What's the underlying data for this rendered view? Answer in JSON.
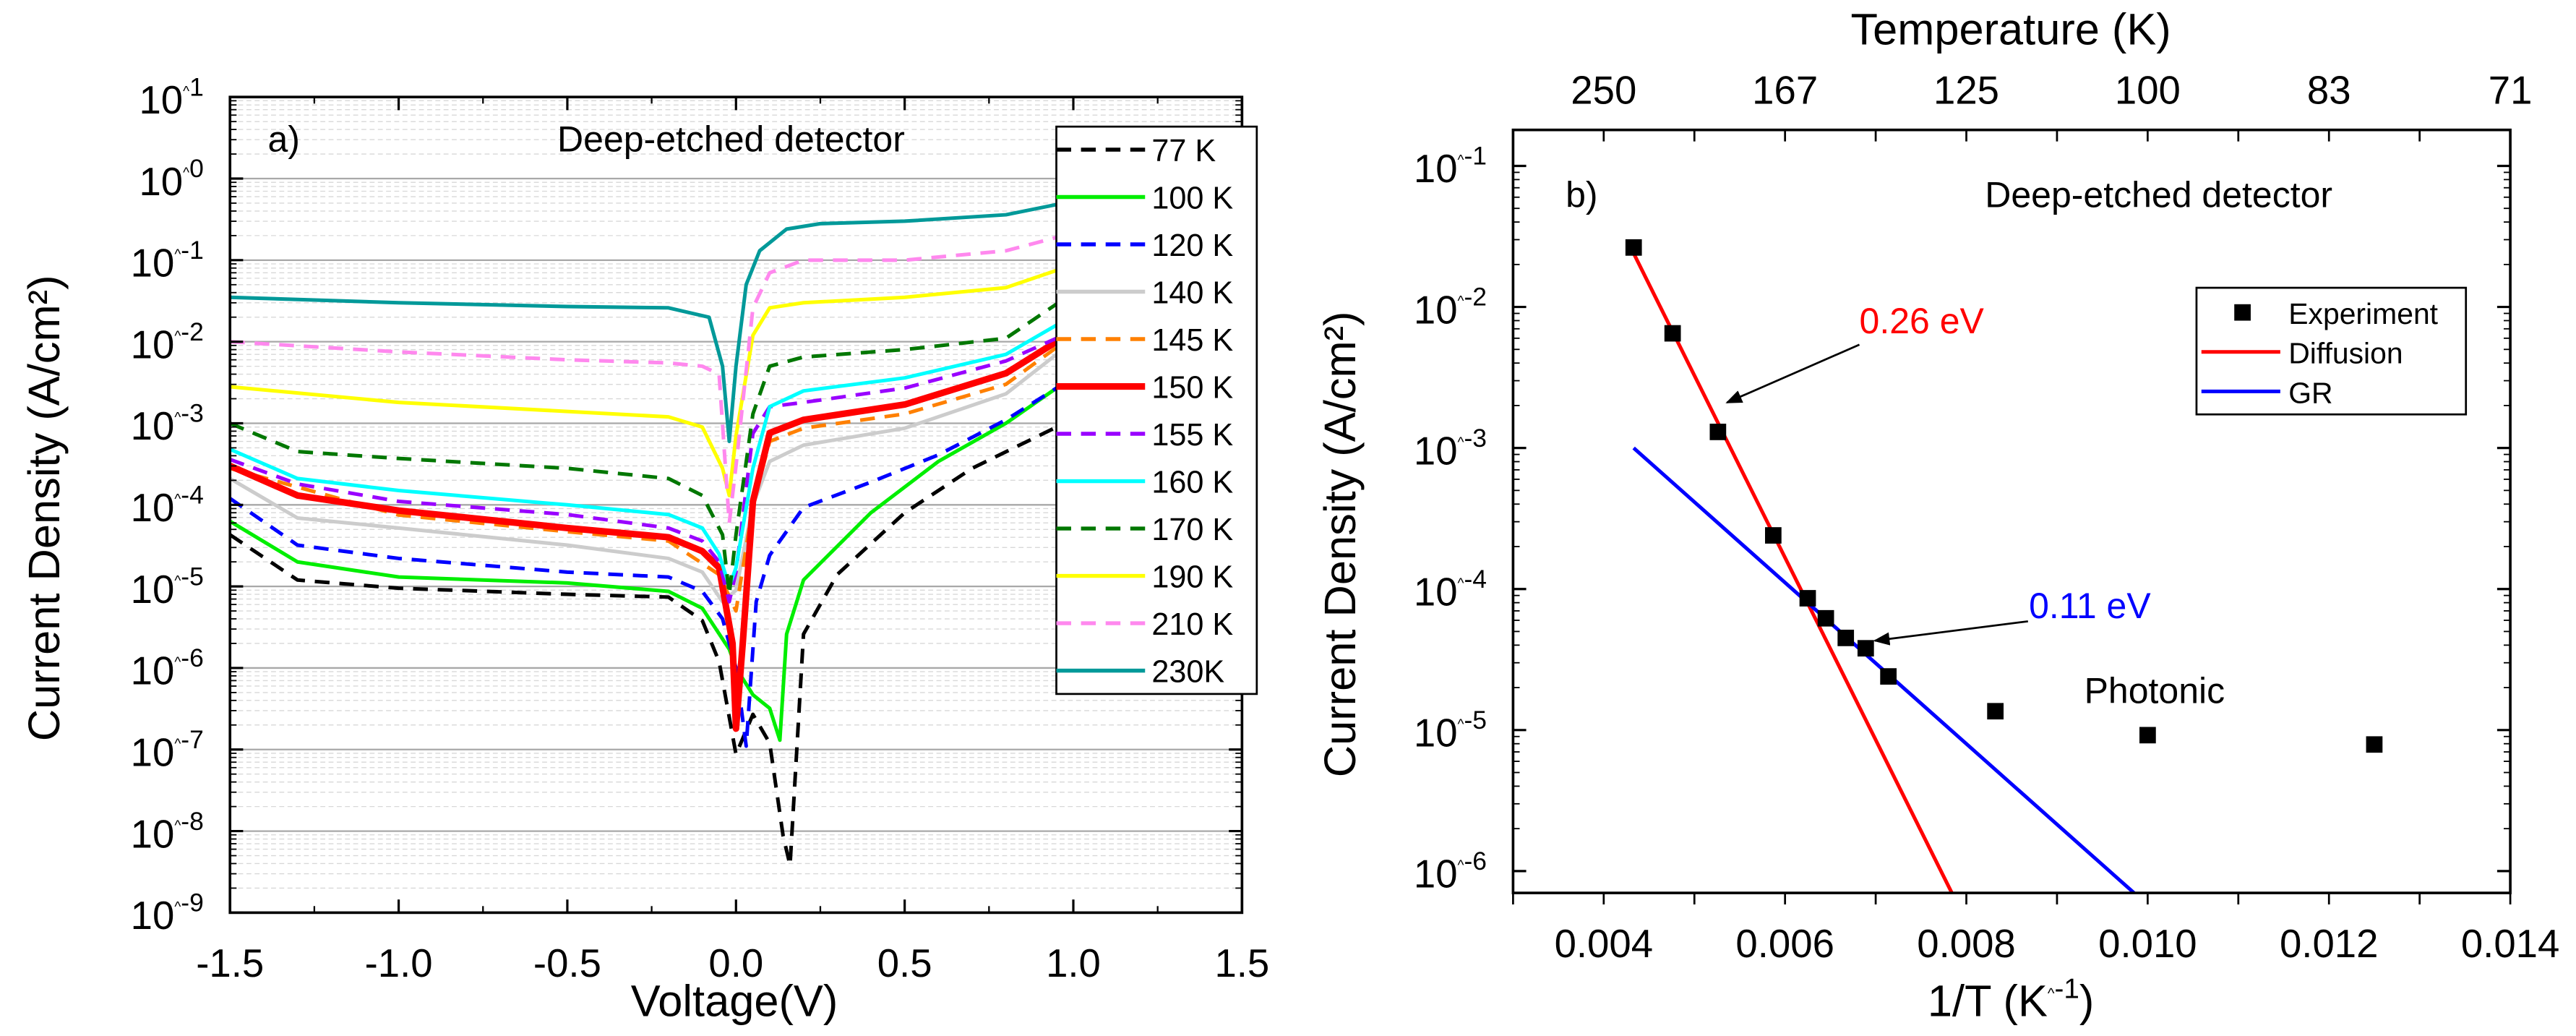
{
  "chart_data": [
    {
      "type": "line",
      "panel_label": "a)",
      "title": "Deep-etched detector",
      "xlabel": "Voltage(V)",
      "ylabel": "Current Density (A/cm²)",
      "xlim": [
        -1.5,
        1.5
      ],
      "ylim": [
        1e-09,
        10
      ],
      "yscale": "log",
      "grid": true,
      "legend_position": "right",
      "xticks": [
        -1.5,
        -1.0,
        -0.5,
        0.0,
        0.5,
        1.0,
        1.5
      ],
      "xtick_labels": [
        "-1.5",
        "-1.0",
        "-0.5",
        "0.0",
        "0.5",
        "1.0",
        "1.5"
      ],
      "ytick_exponents": [
        1,
        0,
        -1,
        -2,
        -3,
        -4,
        -5,
        -6,
        -7,
        -8,
        -9
      ],
      "ytick_labels": [
        "10^1",
        "10^0",
        "10^-1",
        "10^-2",
        "10^-3",
        "10^-4",
        "10^-5",
        "10^-6",
        "10^-7",
        "10^-8",
        "10^-9"
      ],
      "series": [
        {
          "name": "77 K",
          "color": "#000000",
          "dashed": true,
          "points": [
            [
              -1.5,
              4.3e-05
            ],
            [
              -1.3,
              1.2e-05
            ],
            [
              -1.0,
              9.5e-06
            ],
            [
              -0.5,
              8e-06
            ],
            [
              -0.2,
              7.4e-06
            ],
            [
              -0.1,
              3.8e-06
            ],
            [
              -0.05,
              1.2e-06
            ],
            [
              -0.01,
              1.5e-07
            ],
            [
              0.0,
              8.7e-08
            ],
            [
              0.05,
              2.7e-07
            ],
            [
              0.1,
              1.2e-07
            ],
            [
              0.14,
              8.7e-09
            ],
            [
              0.16,
              3.8e-09
            ],
            [
              0.2,
              2.6e-06
            ],
            [
              0.3,
              1.4e-05
            ],
            [
              0.5,
              8e-05
            ],
            [
              0.7,
              0.00028
            ],
            [
              0.95,
              0.0009
            ]
          ]
        },
        {
          "name": "100 K",
          "color": "#00ee00",
          "dashed": false,
          "points": [
            [
              -1.5,
              6.3e-05
            ],
            [
              -1.3,
              2e-05
            ],
            [
              -1.0,
              1.3e-05
            ],
            [
              -0.5,
              1.1e-05
            ],
            [
              -0.2,
              8.7e-06
            ],
            [
              -0.1,
              5.4e-06
            ],
            [
              -0.02,
              1.7e-06
            ],
            [
              0.0,
              1e-06
            ],
            [
              0.05,
              4.7e-07
            ],
            [
              0.1,
              3.2e-07
            ],
            [
              0.13,
              1.3e-07
            ],
            [
              0.15,
              2.6e-06
            ],
            [
              0.2,
              1.2e-05
            ],
            [
              0.4,
              8e-05
            ],
            [
              0.6,
              0.00034
            ],
            [
              0.8,
              0.001
            ],
            [
              0.95,
              0.0027
            ]
          ]
        },
        {
          "name": "120 K",
          "color": "#0000ff",
          "dashed": true,
          "points": [
            [
              -1.5,
              0.00012
            ],
            [
              -1.3,
              3.2e-05
            ],
            [
              -1.0,
              2.2e-05
            ],
            [
              -0.5,
              1.5e-05
            ],
            [
              -0.2,
              1.3e-05
            ],
            [
              -0.1,
              8.7e-06
            ],
            [
              -0.04,
              4e-06
            ],
            [
              0.0,
              1e-06
            ],
            [
              0.03,
              1.1e-07
            ],
            [
              0.06,
              6.5e-06
            ],
            [
              0.1,
              2.4e-05
            ],
            [
              0.2,
              9.3e-05
            ],
            [
              0.4,
              0.00019
            ],
            [
              0.6,
              0.00041
            ],
            [
              0.8,
              0.0011
            ],
            [
              0.95,
              0.0027
            ]
          ]
        },
        {
          "name": "140 K",
          "color": "#cccccc",
          "dashed": false,
          "points": [
            [
              -1.5,
              0.00021
            ],
            [
              -1.3,
              6.9e-05
            ],
            [
              -1.0,
              5.2e-05
            ],
            [
              -0.5,
              3.2e-05
            ],
            [
              -0.2,
              2.2e-05
            ],
            [
              -0.1,
              1.5e-05
            ],
            [
              -0.04,
              6.5e-06
            ],
            [
              0.0,
              9e-06
            ],
            [
              0.05,
              0.0001
            ],
            [
              0.1,
              0.00034
            ],
            [
              0.2,
              0.00054
            ],
            [
              0.5,
              0.00087
            ],
            [
              0.8,
              0.0023
            ],
            [
              0.95,
              0.007
            ]
          ]
        },
        {
          "name": "145 K",
          "color": "#ff8000",
          "dashed": true,
          "points": [
            [
              -1.5,
              0.00028
            ],
            [
              -1.0,
              7.5e-05
            ],
            [
              -0.5,
              4.7e-05
            ],
            [
              -0.2,
              3.6e-05
            ],
            [
              -0.05,
              1.4e-05
            ],
            [
              0.0,
              5e-06
            ],
            [
              0.05,
              0.0001
            ],
            [
              0.1,
              0.0006
            ],
            [
              0.2,
              0.00087
            ],
            [
              0.5,
              0.0013
            ],
            [
              0.8,
              0.003
            ],
            [
              0.95,
              0.0085
            ]
          ]
        },
        {
          "name": "150 K",
          "color": "#ff0000",
          "dashed": false,
          "thick": true,
          "points": [
            [
              -1.5,
              0.0003
            ],
            [
              -1.3,
              0.00013
            ],
            [
              -1.0,
              8.5e-05
            ],
            [
              -0.5,
              5.2e-05
            ],
            [
              -0.2,
              4e-05
            ],
            [
              -0.1,
              2.7e-05
            ],
            [
              -0.05,
              1.7e-05
            ],
            [
              -0.01,
              2e-06
            ],
            [
              0.0,
              1.8e-07
            ],
            [
              0.02,
              2e-06
            ],
            [
              0.05,
              0.00011
            ],
            [
              0.1,
              0.00076
            ],
            [
              0.2,
              0.0011
            ],
            [
              0.5,
              0.0017
            ],
            [
              0.8,
              0.0041
            ],
            [
              0.95,
              0.01
            ]
          ]
        },
        {
          "name": "155 K",
          "color": "#9900ff",
          "dashed": true,
          "points": [
            [
              -1.5,
              0.00036
            ],
            [
              -1.3,
              0.00018
            ],
            [
              -1.0,
              0.00011
            ],
            [
              -0.5,
              7.6e-05
            ],
            [
              -0.2,
              5.2e-05
            ],
            [
              -0.1,
              3.6e-05
            ],
            [
              -0.05,
              2e-05
            ],
            [
              -0.02,
              6.5e-06
            ],
            [
              0.0,
              1.5e-05
            ],
            [
              0.05,
              0.00075
            ],
            [
              0.1,
              0.0016
            ],
            [
              0.2,
              0.0018
            ],
            [
              0.5,
              0.0027
            ],
            [
              0.8,
              0.0058
            ],
            [
              0.95,
              0.011
            ]
          ]
        },
        {
          "name": "160 K",
          "color": "#00ffff",
          "dashed": false,
          "points": [
            [
              -1.5,
              0.00048
            ],
            [
              -1.3,
              0.00021
            ],
            [
              -1.0,
              0.00015
            ],
            [
              -0.5,
              0.0001
            ],
            [
              -0.2,
              7.6e-05
            ],
            [
              -0.1,
              5.2e-05
            ],
            [
              -0.05,
              2.5e-05
            ],
            [
              -0.02,
              1e-05
            ],
            [
              0.0,
              1.7e-05
            ],
            [
              0.05,
              0.00028
            ],
            [
              0.1,
              0.0016
            ],
            [
              0.2,
              0.0025
            ],
            [
              0.5,
              0.0036
            ],
            [
              0.8,
              0.007
            ],
            [
              0.95,
              0.016
            ]
          ]
        },
        {
          "name": "170 K",
          "color": "#007700",
          "dashed": true,
          "points": [
            [
              -1.5,
              0.001
            ],
            [
              -1.3,
              0.00045
            ],
            [
              -1.0,
              0.00037
            ],
            [
              -0.5,
              0.00028
            ],
            [
              -0.2,
              0.00021
            ],
            [
              -0.1,
              0.00013
            ],
            [
              -0.04,
              4.3e-05
            ],
            [
              -0.02,
              8e-06
            ],
            [
              0.0,
              4.3e-05
            ],
            [
              0.05,
              0.0013
            ],
            [
              0.1,
              0.005
            ],
            [
              0.2,
              0.0065
            ],
            [
              0.5,
              0.008
            ],
            [
              0.8,
              0.011
            ],
            [
              0.95,
              0.029
            ]
          ]
        },
        {
          "name": "190 K",
          "color": "#ffff00",
          "dashed": false,
          "points": [
            [
              -1.5,
              0.0028
            ],
            [
              -1.0,
              0.0018
            ],
            [
              -0.5,
              0.0014
            ],
            [
              -0.2,
              0.0012
            ],
            [
              -0.1,
              0.0009
            ],
            [
              -0.04,
              0.00028
            ],
            [
              -0.02,
              0.00013
            ],
            [
              0.0,
              0.0007
            ],
            [
              0.05,
              0.012
            ],
            [
              0.1,
              0.026
            ],
            [
              0.2,
              0.03
            ],
            [
              0.5,
              0.035
            ],
            [
              0.8,
              0.046
            ],
            [
              0.95,
              0.075
            ]
          ]
        },
        {
          "name": "210 K",
          "color": "#ff88ee",
          "dashed": true,
          "points": [
            [
              -1.5,
              0.01
            ],
            [
              -1.0,
              0.0075
            ],
            [
              -0.5,
              0.006
            ],
            [
              -0.2,
              0.0055
            ],
            [
              -0.1,
              0.005
            ],
            [
              -0.05,
              0.004
            ],
            [
              -0.02,
              6e-05
            ],
            [
              0.0,
              0.0003
            ],
            [
              0.05,
              0.026
            ],
            [
              0.1,
              0.07
            ],
            [
              0.2,
              0.1
            ],
            [
              0.5,
              0.1
            ],
            [
              0.8,
              0.13
            ],
            [
              0.95,
              0.19
            ]
          ]
        },
        {
          "name": "230K",
          "color": "#009999",
          "dashed": false,
          "points": [
            [
              -1.5,
              0.035
            ],
            [
              -1.0,
              0.03
            ],
            [
              -0.5,
              0.027
            ],
            [
              -0.2,
              0.026
            ],
            [
              -0.08,
              0.02
            ],
            [
              -0.04,
              0.005
            ],
            [
              -0.02,
              0.0006
            ],
            [
              0.0,
              0.005
            ],
            [
              0.03,
              0.05
            ],
            [
              0.07,
              0.13
            ],
            [
              0.15,
              0.24
            ],
            [
              0.25,
              0.28
            ],
            [
              0.5,
              0.3
            ],
            [
              0.8,
              0.36
            ],
            [
              0.95,
              0.48
            ]
          ]
        }
      ]
    },
    {
      "type": "scatter",
      "panel_label": "b)",
      "title": "Deep-etched detector",
      "xlabel": "1/T (K^-1)",
      "xlabel_main": "1/T (K",
      "xlabel_sup": "-1",
      "xlabel_end": ")",
      "ylabel": "Current Density (A/cm²)",
      "top_xlabel": "Temperature (K)",
      "xlim": [
        0.003,
        0.014
      ],
      "ylim": [
        7e-07,
        0.18
      ],
      "yscale": "log",
      "grid": false,
      "legend_position": "top-right",
      "xticks": [
        0.004,
        0.006,
        0.008,
        0.01,
        0.012,
        0.014
      ],
      "xtick_labels": [
        "0.004",
        "0.006",
        "0.008",
        "0.010",
        "0.012",
        "0.014"
      ],
      "top_ticks": [
        0.004,
        0.006,
        0.008,
        0.01,
        0.012,
        0.014
      ],
      "top_tick_labels": [
        "250",
        "167",
        "125",
        "100",
        "83",
        "71"
      ],
      "ytick_exponents": [
        -1,
        -2,
        -3,
        -4,
        -5,
        -6
      ],
      "ytick_labels": [
        "10^-1",
        "10^-2",
        "10^-3",
        "10^-4",
        "10^-5",
        "10^-6"
      ],
      "series": [
        {
          "name": "Experiment",
          "kind": "scatter",
          "color": "#000000",
          "points": [
            [
              0.00433,
              0.0264
            ],
            [
              0.00476,
              0.0065
            ],
            [
              0.00526,
              0.0013
            ],
            [
              0.00587,
              0.00024
            ],
            [
              0.00625,
              8.6e-05
            ],
            [
              0.00645,
              6.2e-05
            ],
            [
              0.00667,
              4.5e-05
            ],
            [
              0.00689,
              3.8e-05
            ],
            [
              0.00714,
              2.4e-05
            ],
            [
              0.00832,
              1.36e-05
            ],
            [
              0.01,
              9.2e-06
            ],
            [
              0.0125,
              7.9e-06
            ]
          ]
        },
        {
          "name": "Diffusion",
          "kind": "line",
          "color": "#ff0000",
          "points": [
            [
              0.00433,
              0.024
            ],
            [
              0.00784,
              7e-07
            ]
          ]
        },
        {
          "name": "GR",
          "kind": "line",
          "color": "#0000ff",
          "points": [
            [
              0.00433,
              0.001
            ],
            [
              0.00985,
              7e-07
            ]
          ]
        }
      ],
      "annotations": [
        {
          "text": "0.26 eV",
          "color": "#ff0000",
          "at": [
            0.00682,
            0.0065
          ],
          "arrow_from": [
            0.00682,
            0.0054
          ],
          "arrow_to": [
            0.00536,
            0.0021
          ]
        },
        {
          "text": "0.11 eV",
          "color": "#0000ff",
          "at": [
            0.00869,
            6.2e-05
          ],
          "arrow_from": [
            0.00868,
            5.9e-05
          ],
          "arrow_to": [
            0.00699,
            4.3e-05
          ]
        },
        {
          "text": "Photonic",
          "color": "#000000",
          "at": [
            0.0093,
            1.55e-05
          ]
        }
      ]
    }
  ]
}
